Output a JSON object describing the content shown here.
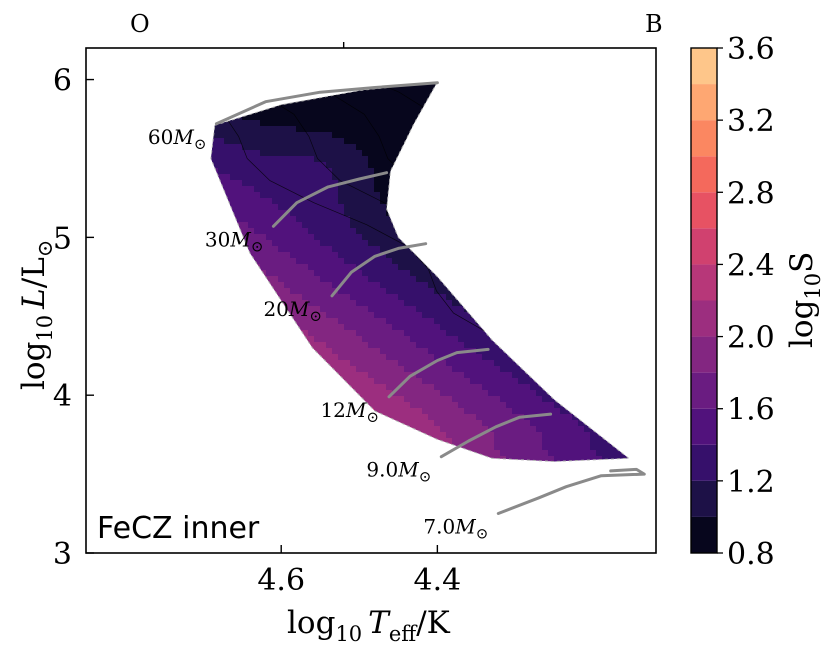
{
  "chart_data": {
    "type": "contour",
    "panel_label": "FeCZ inner",
    "xlabel_base": "log",
    "xlabel_sub": "10",
    "xlabel_var": "T",
    "xlabel_var_sub": "eff",
    "xlabel_unit": "/K",
    "ylabel_base": "log",
    "ylabel_sub": "10",
    "ylabel_var": "L",
    "ylabel_unit": "/L",
    "ylabel_sun": "⊙",
    "xlim": [
      4.85,
      4.12
    ],
    "ylim": [
      3,
      6.2
    ],
    "x_ticks": [
      {
        "value": 4.6,
        "label": "4.6"
      },
      {
        "value": 4.4,
        "label": "4.4"
      }
    ],
    "y_ticks": [
      {
        "value": 3,
        "label": "3"
      },
      {
        "value": 4,
        "label": "4"
      },
      {
        "value": 5,
        "label": "5"
      },
      {
        "value": 6,
        "label": "6"
      }
    ],
    "top_axis": {
      "ticks": [
        {
          "value": 4.52,
          "label": ""
        }
      ],
      "left_label": "O",
      "right_label": "B"
    },
    "colorbar": {
      "label_base": "log",
      "label_sub": "10",
      "label_var": "S",
      "range": [
        0.8,
        3.6
      ],
      "levels": [
        0.8,
        1.0,
        1.2,
        1.4,
        1.6,
        1.8,
        2.0,
        2.2,
        2.4,
        2.6,
        2.8,
        3.0,
        3.2,
        3.4,
        3.6
      ],
      "ticks": [
        {
          "value": 0.8,
          "label": "0.8"
        },
        {
          "value": 1.2,
          "label": "1.2"
        },
        {
          "value": 1.6,
          "label": "1.6"
        },
        {
          "value": 2.0,
          "label": "2.0"
        },
        {
          "value": 2.4,
          "label": "2.4"
        },
        {
          "value": 2.8,
          "label": "2.8"
        },
        {
          "value": 3.2,
          "label": "3.2"
        },
        {
          "value": 3.6,
          "label": "3.6"
        }
      ],
      "colors": [
        "#07061d",
        "#1d1147",
        "#36106b",
        "#51127c",
        "#6a1c81",
        "#832681",
        "#9c2e7f",
        "#b73779",
        "#d0416f",
        "#e75263",
        "#f4695c",
        "#fb8761",
        "#fea772",
        "#fec68a",
        "#fce5a8"
      ]
    },
    "tracks": [
      {
        "mass": "60",
        "label_value": "60",
        "x": [
          4.683,
          4.62,
          4.55,
          4.48,
          4.4
        ],
        "y": [
          5.72,
          5.86,
          5.92,
          5.95,
          5.98
        ]
      },
      {
        "mass": "30",
        "label_value": "30",
        "x": [
          4.61,
          4.58,
          4.54,
          4.5,
          4.465
        ],
        "y": [
          5.07,
          5.22,
          5.32,
          5.37,
          5.41
        ]
      },
      {
        "mass": "20",
        "label_value": "20",
        "x": [
          4.535,
          4.51,
          4.48,
          4.45,
          4.415
        ],
        "y": [
          4.63,
          4.78,
          4.88,
          4.93,
          4.96
        ]
      },
      {
        "mass": "12",
        "label_value": "12",
        "x": [
          4.462,
          4.435,
          4.4,
          4.375,
          4.335
        ],
        "y": [
          3.99,
          4.12,
          4.22,
          4.27,
          4.29
        ]
      },
      {
        "mass": "9.0",
        "label_value": "9.0",
        "x": [
          4.395,
          4.36,
          4.325,
          4.295,
          4.255
        ],
        "y": [
          3.61,
          3.71,
          3.8,
          3.86,
          3.88
        ]
      },
      {
        "mass": "7.0",
        "label_value": "7.0",
        "x": [
          4.322,
          4.27,
          4.235,
          4.19,
          4.135,
          4.145,
          4.178
        ],
        "y": [
          3.25,
          3.35,
          3.42,
          3.49,
          3.5,
          3.53,
          3.52
        ]
      }
    ],
    "mass_suffix": "M",
    "mass_sun": "⊙"
  }
}
